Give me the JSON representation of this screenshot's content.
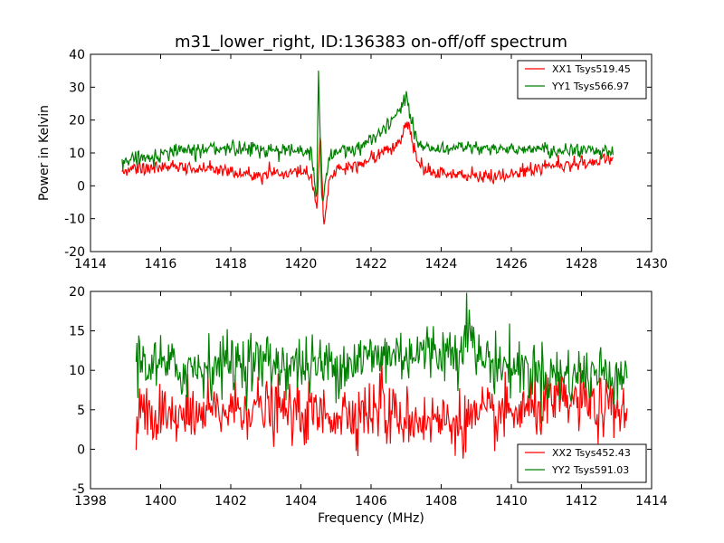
{
  "figure": {
    "title": "m31_lower_right, ID:136383 on-off/off spectrum",
    "xlabel": "Frequency (MHz)",
    "ylabel": "Power in Kelvin"
  },
  "chart_data": [
    {
      "type": "line",
      "title": "m31_lower_right, ID:136383 on-off/off spectrum",
      "xlabel": "",
      "ylabel": "Power in Kelvin",
      "xlim": [
        1414,
        1430
      ],
      "ylim": [
        -20,
        40
      ],
      "xticks": [
        1414,
        1416,
        1418,
        1420,
        1422,
        1424,
        1426,
        1428,
        1430
      ],
      "yticks": [
        -20,
        -10,
        0,
        10,
        20,
        30,
        40
      ],
      "legend_position": "top-right",
      "grid": false,
      "series": [
        {
          "name": "XX1 Tsys519.45",
          "color": "#ff0000",
          "x": [
            1414.9,
            1415.5,
            1416.0,
            1416.5,
            1417.0,
            1417.5,
            1418.0,
            1418.5,
            1419.0,
            1419.5,
            1420.0,
            1420.3,
            1420.45,
            1420.55,
            1420.65,
            1420.8,
            1421.0,
            1421.5,
            1422.0,
            1422.3,
            1422.6,
            1422.85,
            1423.0,
            1423.15,
            1423.35,
            1423.6,
            1424.0,
            1424.5,
            1425.0,
            1425.5,
            1426.0,
            1426.5,
            1427.0,
            1427.5,
            1428.0,
            1428.5,
            1428.9
          ],
          "y": [
            4.5,
            5.5,
            6.0,
            5.8,
            5.0,
            5.2,
            4.5,
            3.5,
            3.8,
            4.0,
            4.2,
            3.0,
            -8.0,
            17.0,
            -13.0,
            1.0,
            5.0,
            6.0,
            8.0,
            10.5,
            11.5,
            14.0,
            20.0,
            15.0,
            8.0,
            4.5,
            4.0,
            3.5,
            2.5,
            3.0,
            4.0,
            5.0,
            6.0,
            6.5,
            7.0,
            7.5,
            8.0
          ]
        },
        {
          "name": "YY1 Tsys566.97",
          "color": "#008000",
          "x": [
            1414.9,
            1415.5,
            1416.0,
            1416.5,
            1417.0,
            1417.5,
            1418.0,
            1418.5,
            1419.0,
            1419.5,
            1420.0,
            1420.3,
            1420.45,
            1420.5,
            1420.6,
            1420.8,
            1421.0,
            1421.5,
            1422.0,
            1422.3,
            1422.6,
            1422.85,
            1423.0,
            1423.15,
            1423.35,
            1423.6,
            1424.0,
            1424.5,
            1425.0,
            1425.5,
            1426.0,
            1426.5,
            1427.0,
            1427.5,
            1428.0,
            1428.5,
            1428.9
          ],
          "y": [
            7.5,
            8.5,
            9.5,
            10.5,
            11.0,
            11.5,
            11.5,
            11.5,
            11.0,
            11.0,
            10.8,
            10.5,
            -6.0,
            34.5,
            -5.0,
            8.0,
            10.5,
            11.0,
            13.5,
            16.0,
            20.0,
            23.5,
            27.5,
            20.0,
            13.0,
            11.5,
            11.5,
            11.5,
            11.0,
            11.5,
            11.5,
            11.2,
            11.0,
            10.8,
            10.8,
            10.6,
            10.5
          ]
        }
      ]
    },
    {
      "type": "line",
      "title": "",
      "xlabel": "Frequency (MHz)",
      "ylabel": "",
      "xlim": [
        1398,
        1414
      ],
      "ylim": [
        -5,
        20
      ],
      "xticks": [
        1398,
        1400,
        1402,
        1404,
        1406,
        1408,
        1410,
        1412,
        1414
      ],
      "yticks": [
        -5,
        0,
        5,
        10,
        15,
        20
      ],
      "legend_position": "bottom-right",
      "grid": false,
      "series": [
        {
          "name": "XX2 Tsys452.43",
          "color": "#ff0000",
          "x": [
            1399.3,
            1399.6,
            1400.0,
            1400.5,
            1401.0,
            1401.5,
            1402.0,
            1402.5,
            1403.0,
            1403.5,
            1404.0,
            1404.5,
            1405.0,
            1405.5,
            1406.0,
            1406.2,
            1406.3,
            1406.4,
            1406.5,
            1407.0,
            1407.5,
            1408.0,
            1408.5,
            1409.0,
            1409.5,
            1410.0,
            1410.5,
            1411.0,
            1411.5,
            1412.0,
            1412.5,
            1413.0,
            1413.3
          ],
          "y": [
            4.0,
            4.0,
            3.8,
            3.8,
            4.0,
            4.5,
            5.0,
            5.5,
            5.0,
            4.8,
            4.5,
            4.3,
            4.5,
            4.8,
            5.0,
            4.0,
            10.0,
            3.0,
            4.2,
            4.0,
            3.8,
            3.5,
            3.6,
            3.8,
            4.2,
            4.5,
            5.0,
            5.5,
            5.8,
            6.0,
            5.2,
            4.8,
            4.5
          ]
        },
        {
          "name": "YY2 Tsys591.03",
          "color": "#008000",
          "x": [
            1399.3,
            1399.6,
            1400.0,
            1400.5,
            1401.0,
            1401.5,
            1402.0,
            1402.5,
            1403.0,
            1403.5,
            1404.0,
            1404.5,
            1405.0,
            1405.5,
            1406.0,
            1406.5,
            1407.0,
            1407.5,
            1408.0,
            1408.5,
            1408.7,
            1409.0,
            1409.5,
            1410.0,
            1410.5,
            1411.0,
            1411.5,
            1412.0,
            1412.5,
            1413.0,
            1413.3
          ],
          "y": [
            11.5,
            11.0,
            10.5,
            10.0,
            10.3,
            10.8,
            11.0,
            11.2,
            11.0,
            10.8,
            10.6,
            10.5,
            10.8,
            11.2,
            11.6,
            12.0,
            12.2,
            12.3,
            12.5,
            12.2,
            16.5,
            11.8,
            11.0,
            10.5,
            10.0,
            9.5,
            9.3,
            9.5,
            9.6,
            9.8,
            10.0
          ]
        }
      ]
    }
  ]
}
